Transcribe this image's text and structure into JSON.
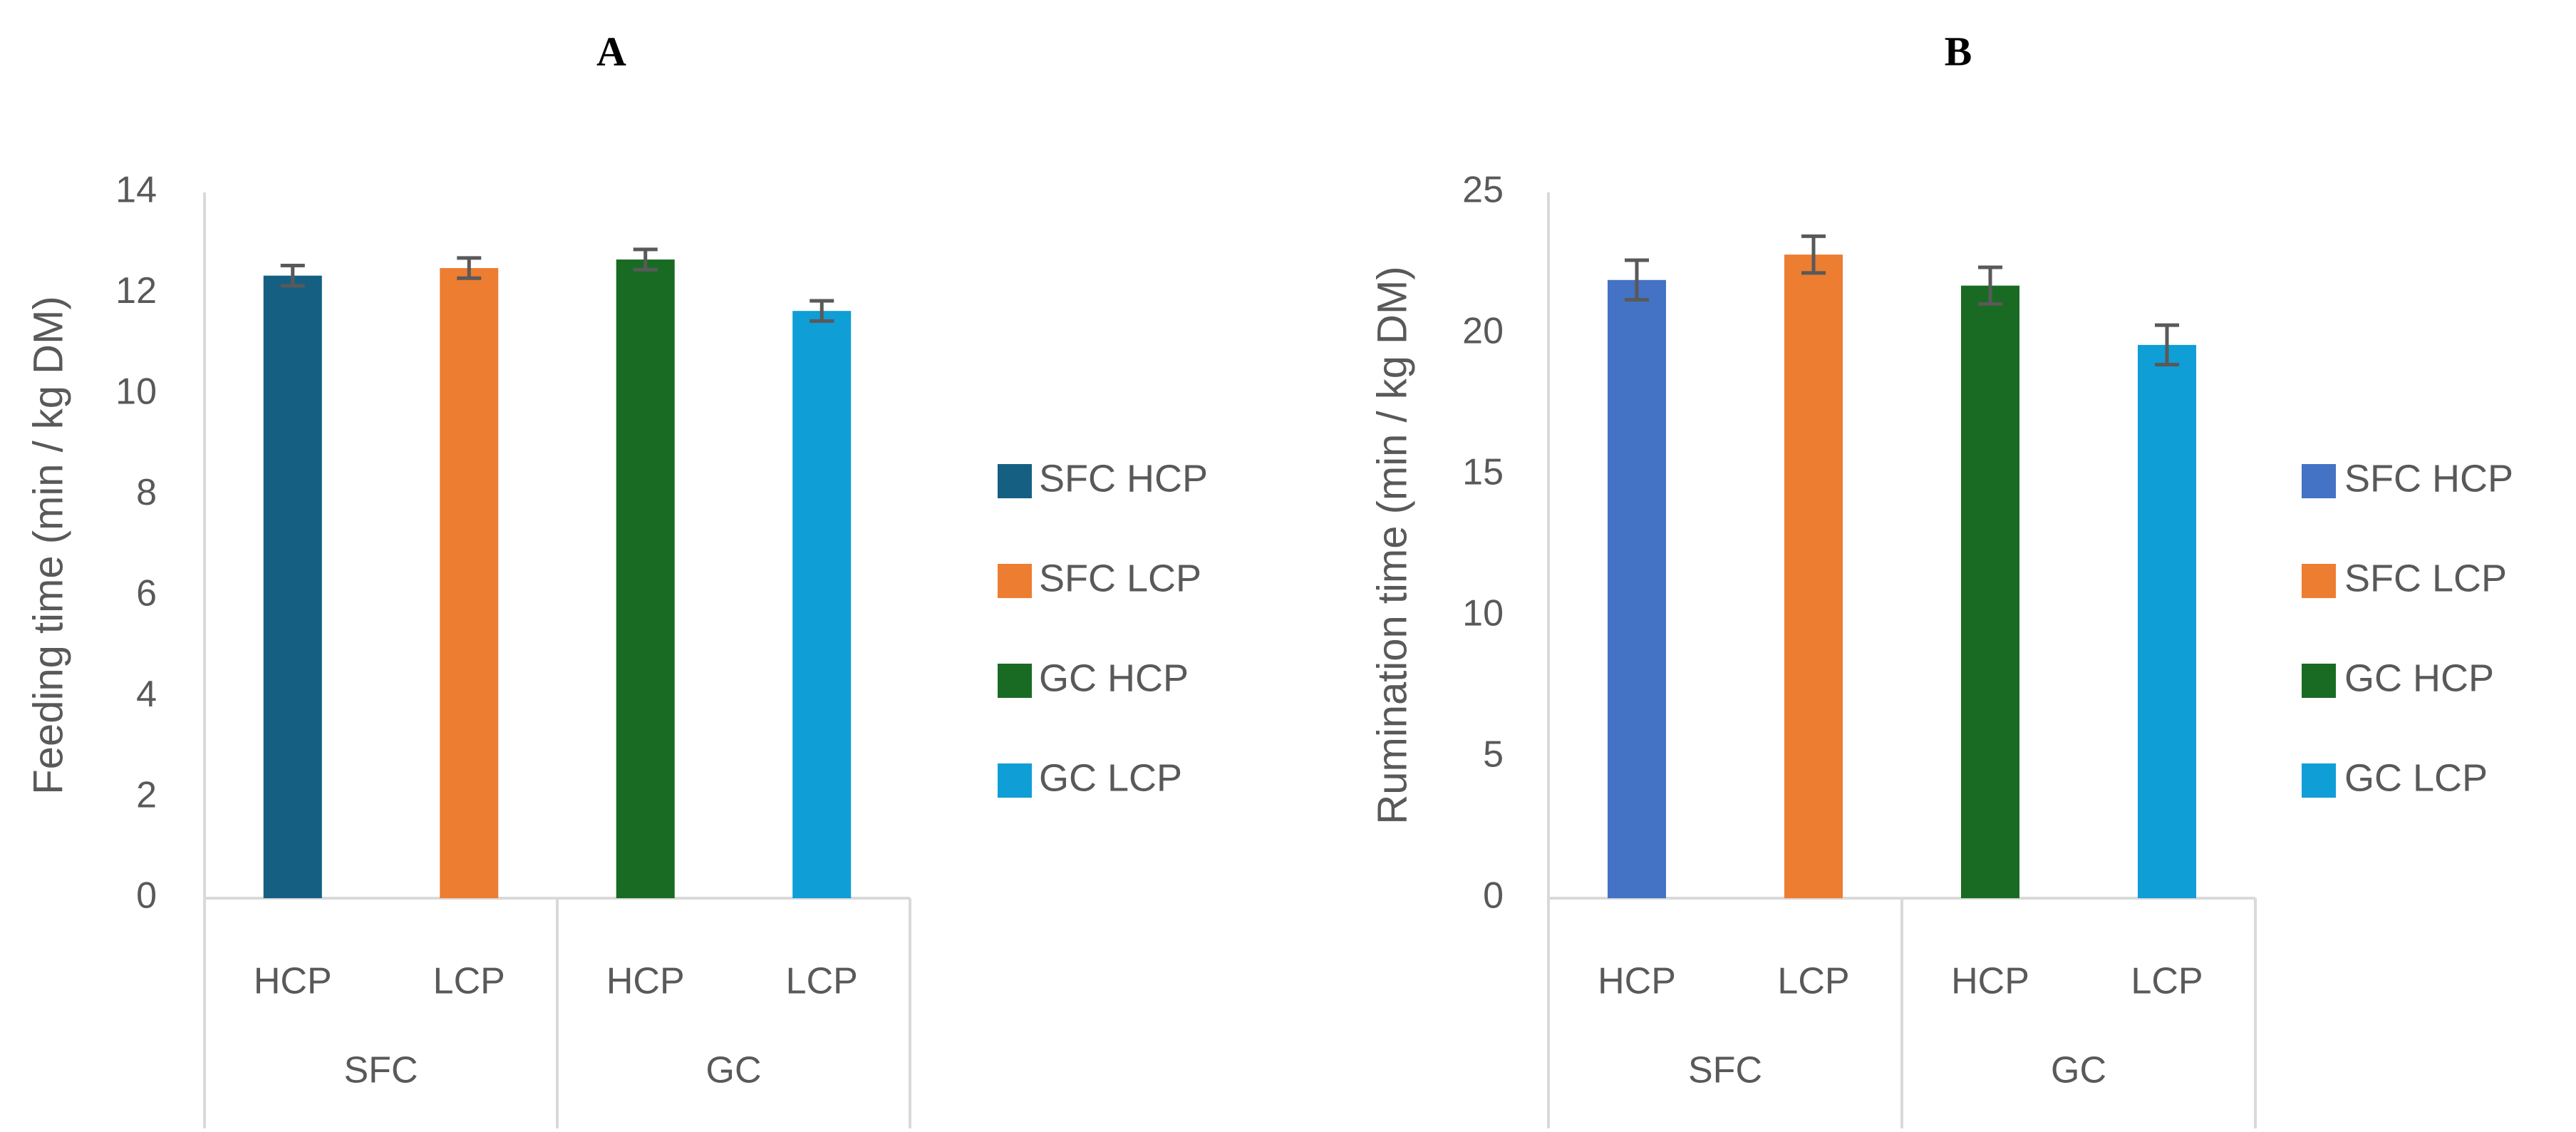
{
  "colors": {
    "axis": "#d9d9d9",
    "text": "#595959",
    "errorbar": "#595959",
    "title": "#000000"
  },
  "chart_data": [
    {
      "type": "bar",
      "panel_label": "A",
      "ylabel": "Feeding time (min / kg DM)",
      "ylim": [
        0,
        14
      ],
      "yticks": [
        0,
        2,
        4,
        6,
        8,
        10,
        12,
        14
      ],
      "groups": [
        {
          "name": "SFC",
          "categories": [
            "HCP",
            "LCP"
          ]
        },
        {
          "name": "GC",
          "categories": [
            "HCP",
            "LCP"
          ]
        }
      ],
      "series": [
        {
          "name": "SFC HCP",
          "color": "#156082",
          "value": 12.35,
          "error": 0.2
        },
        {
          "name": "SFC LCP",
          "color": "#ED7D31",
          "value": 12.5,
          "error": 0.2
        },
        {
          "name": "GC HCP",
          "color": "#196B24",
          "value": 12.67,
          "error": 0.2
        },
        {
          "name": "GC LCP",
          "color": "#0F9ED5",
          "value": 11.65,
          "error": 0.2
        }
      ],
      "legend": "right",
      "grid": false
    },
    {
      "type": "bar",
      "panel_label": "B",
      "ylabel": "Rumination time (min / kg DM)",
      "ylim": [
        0,
        25
      ],
      "yticks": [
        0,
        5,
        10,
        15,
        20,
        25
      ],
      "groups": [
        {
          "name": "SFC",
          "categories": [
            "HCP",
            "LCP"
          ]
        },
        {
          "name": "GC",
          "categories": [
            "HCP",
            "LCP"
          ]
        }
      ],
      "series": [
        {
          "name": "SFC HCP",
          "color": "#4472C4",
          "value": 21.9,
          "error": 0.7
        },
        {
          "name": "SFC LCP",
          "color": "#ED7D31",
          "value": 22.8,
          "error": 0.65
        },
        {
          "name": "GC HCP",
          "color": "#196B24",
          "value": 21.7,
          "error": 0.65
        },
        {
          "name": "GC LCP",
          "color": "#0F9ED5",
          "value": 19.6,
          "error": 0.7
        }
      ],
      "legend": "right",
      "grid": false
    }
  ]
}
